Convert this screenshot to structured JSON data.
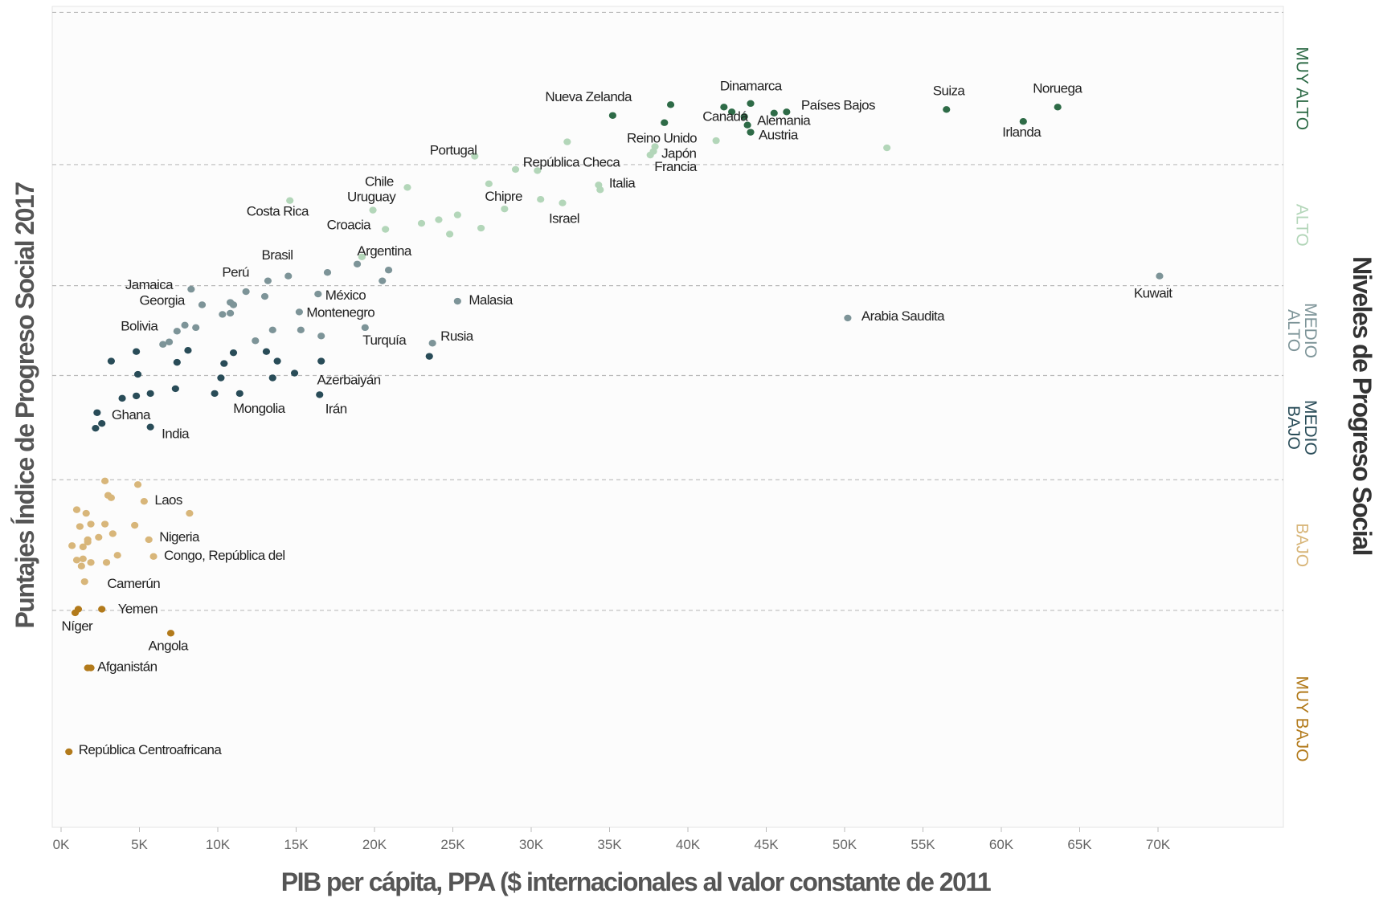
{
  "chart_data": {
    "type": "scatter",
    "xlabel": "PIB per cápita, PPA ($ internacionales al valor constante de 2011",
    "ylabel": "Puntajes Índice de Progreso Social 2017",
    "right_title": "Niveles de Progreso Social",
    "x_ticks": [
      "0K",
      "5K",
      "10K",
      "15K",
      "20K",
      "25K",
      "30K",
      "35K",
      "40K",
      "45K",
      "50K",
      "55K",
      "60K",
      "65K",
      "70K"
    ],
    "xlim": [
      0,
      74000
    ],
    "grid": "horizontal dashed lines at level boundaries",
    "legend_placement": "right side, vertical level labels",
    "levels": [
      {
        "name": "MUY ALTO",
        "lines": [
          "MUY ALTO"
        ],
        "color": "#2e6b47",
        "range": [
          85.3,
          98
        ]
      },
      {
        "name": "ALTO",
        "lines": [
          "ALTO"
        ],
        "color": "#b3d6b9",
        "range": [
          75.2,
          85.3
        ]
      },
      {
        "name": "MEDIO ALTO",
        "lines": [
          "MEDIO",
          "ALTO"
        ],
        "color": "#7d9498",
        "range": [
          67.7,
          75.2
        ]
      },
      {
        "name": "MEDIO BAJO",
        "lines": [
          "MEDIO",
          "BAJO"
        ],
        "color": "#294c58",
        "range": [
          59,
          67.7
        ]
      },
      {
        "name": "BAJO",
        "lines": [
          "BAJO"
        ],
        "color": "#d8b67a",
        "range": [
          48.1,
          59
        ]
      },
      {
        "name": "MUY BAJO",
        "lines": [
          "MUY BAJO"
        ],
        "color": "#b27a1b",
        "range": [
          30,
          48.1
        ]
      }
    ],
    "level_boundaries": [
      98,
      85.3,
      75.2,
      67.7,
      59,
      48.1
    ],
    "ylim": [
      30,
      98.5
    ],
    "points": [
      {
        "x": 35200,
        "y": 89.4,
        "level": "MUY ALTO",
        "label": "Nueva Zelanda"
      },
      {
        "x": 38900,
        "y": 90.3,
        "level": "MUY ALTO"
      },
      {
        "x": 38500,
        "y": 88.8,
        "level": "MUY ALTO"
      },
      {
        "x": 42300,
        "y": 90.1,
        "level": "MUY ALTO",
        "label": "Dinamarca"
      },
      {
        "x": 42800,
        "y": 89.7,
        "level": "MUY ALTO"
      },
      {
        "x": 44000,
        "y": 90.4,
        "level": "MUY ALTO"
      },
      {
        "x": 43600,
        "y": 89.3,
        "level": "MUY ALTO",
        "label": "Canadá"
      },
      {
        "x": 43800,
        "y": 88.6,
        "level": "MUY ALTO",
        "label": "Alemania"
      },
      {
        "x": 44000,
        "y": 88.0,
        "level": "MUY ALTO",
        "label": "Austria"
      },
      {
        "x": 45500,
        "y": 89.6,
        "level": "MUY ALTO"
      },
      {
        "x": 46300,
        "y": 89.7,
        "level": "MUY ALTO",
        "label": "Países Bajos"
      },
      {
        "x": 56500,
        "y": 89.9,
        "level": "MUY ALTO",
        "label": "Suiza"
      },
      {
        "x": 61400,
        "y": 88.9,
        "level": "MUY ALTO",
        "label": "Irlanda"
      },
      {
        "x": 63600,
        "y": 90.1,
        "level": "MUY ALTO",
        "label": "Noruega"
      },
      {
        "x": 32300,
        "y": 87.2,
        "level": "ALTO"
      },
      {
        "x": 41800,
        "y": 87.3,
        "level": "ALTO"
      },
      {
        "x": 37900,
        "y": 86.8,
        "level": "ALTO",
        "label": "Reino Unido"
      },
      {
        "x": 37800,
        "y": 86.4,
        "level": "ALTO",
        "label": "Japón"
      },
      {
        "x": 37600,
        "y": 86.1,
        "level": "ALTO",
        "label": "Francia"
      },
      {
        "x": 52700,
        "y": 86.7,
        "level": "ALTO"
      },
      {
        "x": 26400,
        "y": 86.0,
        "level": "ALTO",
        "label": "Portugal"
      },
      {
        "x": 29000,
        "y": 84.9,
        "level": "ALTO"
      },
      {
        "x": 30400,
        "y": 84.8,
        "level": "ALTO",
        "label": "República Checa"
      },
      {
        "x": 27300,
        "y": 83.7,
        "level": "ALTO",
        "label": "Chipre"
      },
      {
        "x": 34300,
        "y": 83.6,
        "level": "ALTO",
        "label": "Italia"
      },
      {
        "x": 34400,
        "y": 83.2,
        "level": "ALTO"
      },
      {
        "x": 30600,
        "y": 82.4,
        "level": "ALTO"
      },
      {
        "x": 32000,
        "y": 82.1,
        "level": "ALTO",
        "label": "Israel"
      },
      {
        "x": 28300,
        "y": 81.6,
        "level": "ALTO"
      },
      {
        "x": 22100,
        "y": 83.4,
        "level": "ALTO",
        "label": "Chile"
      },
      {
        "x": 19900,
        "y": 81.5,
        "level": "ALTO",
        "label": "Uruguay"
      },
      {
        "x": 14600,
        "y": 82.3,
        "level": "ALTO",
        "label": "Costa Rica"
      },
      {
        "x": 25300,
        "y": 81.1,
        "level": "ALTO"
      },
      {
        "x": 24100,
        "y": 80.7,
        "level": "ALTO"
      },
      {
        "x": 23000,
        "y": 80.4,
        "level": "ALTO"
      },
      {
        "x": 20700,
        "y": 79.9,
        "level": "ALTO",
        "label": "Croacia"
      },
      {
        "x": 26800,
        "y": 80.0,
        "level": "ALTO"
      },
      {
        "x": 24800,
        "y": 79.5,
        "level": "ALTO"
      },
      {
        "x": 19200,
        "y": 77.6,
        "level": "ALTO",
        "label": "Argentina"
      },
      {
        "x": 18900,
        "y": 77.0,
        "level": "MEDIO ALTO",
        "label": "Brasil"
      },
      {
        "x": 20900,
        "y": 76.5,
        "level": "MEDIO ALTO"
      },
      {
        "x": 17000,
        "y": 76.3,
        "level": "MEDIO ALTO"
      },
      {
        "x": 14500,
        "y": 76.0,
        "level": "MEDIO ALTO"
      },
      {
        "x": 13200,
        "y": 75.6,
        "level": "MEDIO ALTO",
        "label": "Perú"
      },
      {
        "x": 20500,
        "y": 75.6,
        "level": "MEDIO ALTO"
      },
      {
        "x": 8300,
        "y": 74.9,
        "level": "MEDIO ALTO",
        "label": "Jamaica"
      },
      {
        "x": 11800,
        "y": 74.7,
        "level": "MEDIO ALTO"
      },
      {
        "x": 13000,
        "y": 74.3,
        "level": "MEDIO ALTO"
      },
      {
        "x": 16400,
        "y": 74.5,
        "level": "MEDIO ALTO",
        "label": "México"
      },
      {
        "x": 9000,
        "y": 73.6,
        "level": "MEDIO ALTO",
        "label": "Georgia"
      },
      {
        "x": 10800,
        "y": 73.8,
        "level": "MEDIO ALTO"
      },
      {
        "x": 11000,
        "y": 73.6,
        "level": "MEDIO ALTO"
      },
      {
        "x": 10300,
        "y": 72.8,
        "level": "MEDIO ALTO"
      },
      {
        "x": 10800,
        "y": 72.9,
        "level": "MEDIO ALTO"
      },
      {
        "x": 15200,
        "y": 73.0,
        "level": "MEDIO ALTO",
        "label": "Montenegro"
      },
      {
        "x": 25300,
        "y": 73.9,
        "level": "MEDIO ALTO",
        "label": "Malasia"
      },
      {
        "x": 7900,
        "y": 71.9,
        "level": "MEDIO ALTO"
      },
      {
        "x": 8600,
        "y": 71.7,
        "level": "MEDIO ALTO"
      },
      {
        "x": 7400,
        "y": 71.4,
        "level": "MEDIO ALTO",
        "label": "Bolivia"
      },
      {
        "x": 13500,
        "y": 71.5,
        "level": "MEDIO ALTO"
      },
      {
        "x": 15300,
        "y": 71.5,
        "level": "MEDIO ALTO"
      },
      {
        "x": 12400,
        "y": 70.6,
        "level": "MEDIO ALTO"
      },
      {
        "x": 6500,
        "y": 70.3,
        "level": "MEDIO ALTO"
      },
      {
        "x": 6900,
        "y": 70.5,
        "level": "MEDIO ALTO"
      },
      {
        "x": 19400,
        "y": 71.7,
        "level": "MEDIO ALTO",
        "label": "Turquía"
      },
      {
        "x": 16600,
        "y": 71.0,
        "level": "MEDIO ALTO"
      },
      {
        "x": 23700,
        "y": 70.4,
        "level": "MEDIO ALTO",
        "label": "Rusia"
      },
      {
        "x": 50200,
        "y": 72.5,
        "level": "MEDIO ALTO",
        "label": "Arabia Saudita"
      },
      {
        "x": 70100,
        "y": 76.0,
        "level": "MEDIO ALTO",
        "label": "Kuwait"
      },
      {
        "x": 8100,
        "y": 69.8,
        "level": "MEDIO BAJO"
      },
      {
        "x": 4800,
        "y": 69.7,
        "level": "MEDIO BAJO"
      },
      {
        "x": 11000,
        "y": 69.6,
        "level": "MEDIO BAJO"
      },
      {
        "x": 13100,
        "y": 69.7,
        "level": "MEDIO BAJO"
      },
      {
        "x": 23500,
        "y": 69.3,
        "level": "MEDIO BAJO"
      },
      {
        "x": 3200,
        "y": 68.9,
        "level": "MEDIO BAJO"
      },
      {
        "x": 7400,
        "y": 68.8,
        "level": "MEDIO BAJO"
      },
      {
        "x": 10400,
        "y": 68.7,
        "level": "MEDIO BAJO"
      },
      {
        "x": 13800,
        "y": 68.9,
        "level": "MEDIO BAJO"
      },
      {
        "x": 16600,
        "y": 68.9,
        "level": "MEDIO BAJO"
      },
      {
        "x": 4900,
        "y": 67.8,
        "level": "MEDIO BAJO"
      },
      {
        "x": 14900,
        "y": 67.9,
        "level": "MEDIO BAJO",
        "label": "Azerbaiyán"
      },
      {
        "x": 10200,
        "y": 67.5,
        "level": "MEDIO BAJO"
      },
      {
        "x": 13500,
        "y": 67.5,
        "level": "MEDIO BAJO"
      },
      {
        "x": 7300,
        "y": 66.6,
        "level": "MEDIO BAJO"
      },
      {
        "x": 9800,
        "y": 66.2,
        "level": "MEDIO BAJO"
      },
      {
        "x": 11400,
        "y": 66.2,
        "level": "MEDIO BAJO",
        "label": "Mongolia"
      },
      {
        "x": 16500,
        "y": 66.1,
        "level": "MEDIO BAJO",
        "label": "Irán"
      },
      {
        "x": 5700,
        "y": 66.2,
        "level": "MEDIO BAJO"
      },
      {
        "x": 4800,
        "y": 66.0,
        "level": "MEDIO BAJO"
      },
      {
        "x": 3900,
        "y": 65.8,
        "level": "MEDIO BAJO"
      },
      {
        "x": 2300,
        "y": 64.6,
        "level": "MEDIO BAJO",
        "label": "Ghana"
      },
      {
        "x": 2600,
        "y": 63.7,
        "level": "MEDIO BAJO"
      },
      {
        "x": 2200,
        "y": 63.3,
        "level": "MEDIO BAJO"
      },
      {
        "x": 5700,
        "y": 63.4,
        "level": "MEDIO BAJO",
        "label": "India"
      },
      {
        "x": 2800,
        "y": 58.9,
        "level": "BAJO"
      },
      {
        "x": 4900,
        "y": 58.6,
        "level": "BAJO"
      },
      {
        "x": 3000,
        "y": 57.7,
        "level": "BAJO"
      },
      {
        "x": 3200,
        "y": 57.5,
        "level": "BAJO"
      },
      {
        "x": 5300,
        "y": 57.2,
        "level": "BAJO",
        "label": "Laos"
      },
      {
        "x": 1000,
        "y": 56.5,
        "level": "BAJO"
      },
      {
        "x": 1600,
        "y": 56.2,
        "level": "BAJO"
      },
      {
        "x": 8200,
        "y": 56.2,
        "level": "BAJO"
      },
      {
        "x": 1900,
        "y": 55.3,
        "level": "BAJO"
      },
      {
        "x": 2800,
        "y": 55.3,
        "level": "BAJO"
      },
      {
        "x": 4700,
        "y": 55.2,
        "level": "BAJO"
      },
      {
        "x": 1200,
        "y": 55.1,
        "level": "BAJO"
      },
      {
        "x": 3300,
        "y": 54.5,
        "level": "BAJO"
      },
      {
        "x": 2400,
        "y": 54.2,
        "level": "BAJO"
      },
      {
        "x": 1700,
        "y": 54.0,
        "level": "BAJO"
      },
      {
        "x": 1700,
        "y": 53.8,
        "level": "BAJO"
      },
      {
        "x": 5600,
        "y": 54.0,
        "level": "BAJO",
        "label": "Nigeria"
      },
      {
        "x": 700,
        "y": 53.5,
        "level": "BAJO"
      },
      {
        "x": 1400,
        "y": 53.4,
        "level": "BAJO"
      },
      {
        "x": 3600,
        "y": 52.7,
        "level": "BAJO"
      },
      {
        "x": 5900,
        "y": 52.6,
        "level": "BAJO",
        "label": "Congo, República del"
      },
      {
        "x": 1400,
        "y": 52.4,
        "level": "BAJO"
      },
      {
        "x": 1000,
        "y": 52.3,
        "level": "BAJO"
      },
      {
        "x": 1900,
        "y": 52.1,
        "level": "BAJO"
      },
      {
        "x": 2900,
        "y": 52.1,
        "level": "BAJO"
      },
      {
        "x": 1300,
        "y": 51.8,
        "level": "BAJO",
        "label": "Camerún"
      },
      {
        "x": 1500,
        "y": 50.5,
        "level": "BAJO"
      },
      {
        "x": 1100,
        "y": 48.2,
        "level": "MUY BAJO"
      },
      {
        "x": 2600,
        "y": 48.2,
        "level": "MUY BAJO",
        "label": "Yemen"
      },
      {
        "x": 900,
        "y": 47.9,
        "level": "MUY BAJO",
        "label": "Níger"
      },
      {
        "x": 7000,
        "y": 46.2,
        "level": "MUY BAJO",
        "label": "Angola"
      },
      {
        "x": 1700,
        "y": 43.3,
        "level": "MUY BAJO",
        "label": "Afganistán"
      },
      {
        "x": 1900,
        "y": 43.3,
        "level": "MUY BAJO"
      },
      {
        "x": 500,
        "y": 36.3,
        "level": "MUY BAJO",
        "label": "República Centroafricana"
      }
    ]
  }
}
